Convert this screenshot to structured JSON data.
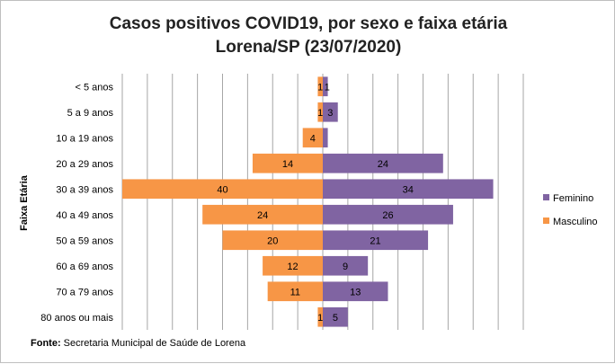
{
  "chart_data": {
    "type": "bar",
    "orientation": "horizontal-diverging",
    "title_lines": [
      "Casos positivos  COVID19, por sexo e faixa etária",
      "Lorena/SP (23/07/2020)"
    ],
    "ylabel": "Faixa Etária",
    "categories": [
      "< 5 anos",
      "5 a 9 anos",
      "10 a 19 anos",
      "20 a 29 anos",
      "30 a 39 anos",
      "40 a 49 anos",
      "50 a 59 anos",
      "60 a 69 anos",
      "70 a 79 anos",
      "80 anos ou mais"
    ],
    "series": [
      {
        "name": "Feminino",
        "color": "#8064a2",
        "values": [
          1,
          3,
          1,
          24,
          34,
          26,
          21,
          9,
          13,
          5
        ],
        "data_labels": [
          "1",
          "3",
          "",
          "24",
          "34",
          "26",
          "21",
          "9",
          "13",
          "5"
        ]
      },
      {
        "name": "Masculino",
        "color": "#f79646",
        "values": [
          1,
          1,
          4,
          14,
          40,
          24,
          20,
          12,
          11,
          1
        ],
        "data_labels": [
          "1",
          "1",
          "4",
          "14",
          "40",
          "24",
          "20",
          "12",
          "11",
          "1"
        ]
      }
    ],
    "xlim": [
      -40,
      40
    ],
    "grid": "vertical",
    "legend_position": "right"
  },
  "source": {
    "label": "Fonte:",
    "text": " Secretaria Municipal de Saúde de Lorena"
  }
}
